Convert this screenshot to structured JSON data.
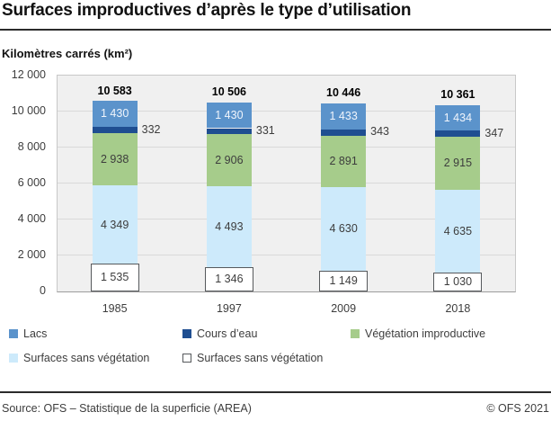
{
  "header": {
    "title": "Surfaces improductives d’après le type d’utilisation"
  },
  "chart": {
    "unit_label": "Kilomètres carrés (km²)"
  },
  "chart_data": {
    "type": "bar",
    "stacked": true,
    "title": "Surfaces improductives d’après le type d’utilisation",
    "ylabel": "Kilomètres carrés (km²)",
    "xlabel": "",
    "categories": [
      "1985",
      "1997",
      "2009",
      "2018"
    ],
    "series": [
      {
        "name": "Surfaces sans végétation",
        "swatch": "outline",
        "color": "#ffffff",
        "border": "#56595c",
        "label_color": "#3d3d3d",
        "values": [
          1535,
          1346,
          1149,
          1030
        ]
      },
      {
        "name": "Surfaces sans végétation",
        "swatch": "fill",
        "color": "#cdeafb",
        "label_color": "#3d3d3d",
        "values": [
          4349,
          4493,
          4630,
          4635
        ]
      },
      {
        "name": "Végétation improductive",
        "swatch": "fill",
        "color": "#a6cc8b",
        "label_color": "#3d3d3d",
        "values": [
          2938,
          2906,
          2891,
          2915
        ]
      },
      {
        "name": "Cours d’eau",
        "swatch": "fill",
        "color": "#1f4e91",
        "label_color": "#3d3d3d",
        "label_outside": true,
        "values": [
          332,
          331,
          343,
          347
        ]
      },
      {
        "name": "Lacs",
        "swatch": "fill",
        "color": "#5b93cb",
        "label_color": "#f0f5fc",
        "values": [
          1430,
          1430,
          1433,
          1434
        ]
      }
    ],
    "totals": [
      10583,
      10506,
      10446,
      10361
    ],
    "ylim": [
      0,
      12000
    ],
    "yticks": [
      {
        "value": 0,
        "label": "0"
      },
      {
        "value": 2000,
        "label": "2 000"
      },
      {
        "value": 4000,
        "label": "4 000"
      },
      {
        "value": 6000,
        "label": "6 000"
      },
      {
        "value": 8000,
        "label": "8 000"
      },
      {
        "value": 10000,
        "label": "10 000"
      },
      {
        "value": 12000,
        "label": "12 000"
      }
    ],
    "grid": "horizontal",
    "legend_position": "bottom",
    "plot_background": "#f0f0f0",
    "gridline_color": "#d9d9d9"
  },
  "legend_items": [
    {
      "label": "Lacs",
      "color": "#5b93cb",
      "swatch": "fill"
    },
    {
      "label": "Cours d’eau",
      "color": "#1f4e91",
      "swatch": "fill"
    },
    {
      "label": "Végétation improductive",
      "color": "#a6cc8b",
      "swatch": "fill"
    },
    {
      "label": "Surfaces sans végétation",
      "color": "#cdeafb",
      "swatch": "fill"
    },
    {
      "label": "Surfaces sans végétation",
      "color": "#ffffff",
      "swatch": "outline"
    }
  ],
  "footer": {
    "source": "Source: OFS – Statistique de la superficie (AREA)",
    "copyright": "© OFS 2021"
  }
}
